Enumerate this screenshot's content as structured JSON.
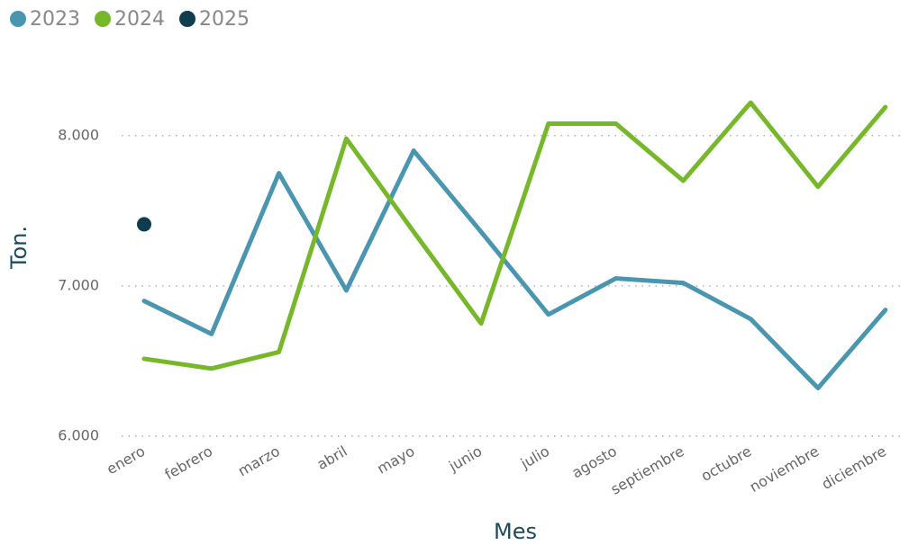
{
  "chart_data": {
    "type": "line",
    "x_label": "Mes",
    "y_label": "Ton.",
    "categories": [
      "enero",
      "febrero",
      "marzo",
      "abril",
      "mayo",
      "junio",
      "julio",
      "agosto",
      "septiembre",
      "octubre",
      "noviembre",
      "diciembre"
    ],
    "series": [
      {
        "name": "2023",
        "color": "#4a96b0",
        "values": [
          6900,
          6680,
          7750,
          6970,
          7900,
          7360,
          6810,
          7050,
          7020,
          6780,
          6320,
          6840
        ]
      },
      {
        "name": "2024",
        "color": "#76b82a",
        "values": [
          6515,
          6450,
          6560,
          7980,
          7360,
          6750,
          8080,
          8080,
          7700,
          8220,
          7660,
          8190
        ]
      },
      {
        "name": "2025",
        "color": "#0d3d4f",
        "values": [
          7410,
          null,
          null,
          null,
          null,
          null,
          null,
          null,
          null,
          null,
          null,
          null
        ]
      }
    ],
    "ylim": [
      6000,
      8400
    ],
    "yticks": [
      {
        "value": 6000,
        "label": "6.000"
      },
      {
        "value": 7000,
        "label": "7.000"
      },
      {
        "value": 8000,
        "label": "8.000"
      }
    ],
    "grid": true,
    "legend": "top-left"
  }
}
